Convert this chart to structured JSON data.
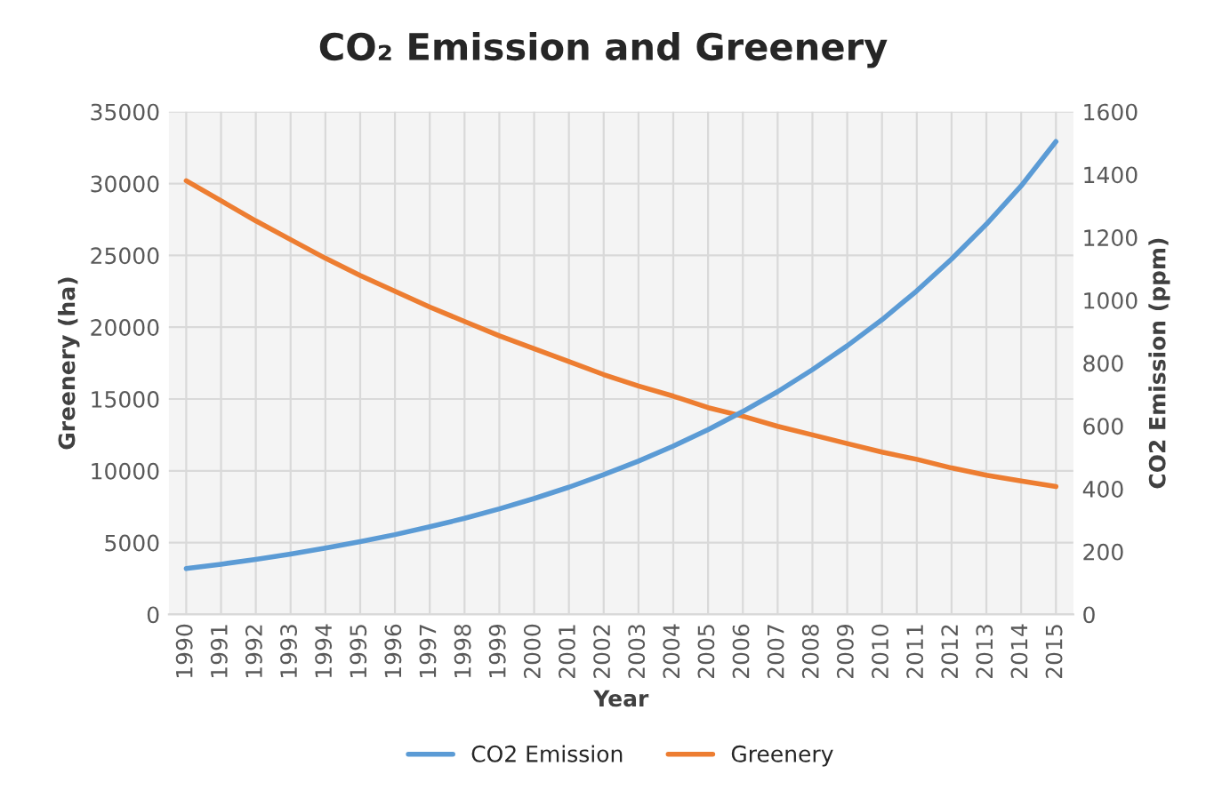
{
  "chart_data": {
    "type": "line",
    "title": "CO₂ Emission and Greenery",
    "xlabel": "Year",
    "ylabel": "Greenery (ha)",
    "y2label": "CO2 Emission (ppm)",
    "categories": [
      "1990",
      "1991",
      "1992",
      "1993",
      "1994",
      "1995",
      "1996",
      "1997",
      "1998",
      "1999",
      "2000",
      "2001",
      "2002",
      "2003",
      "2004",
      "2005",
      "2006",
      "2007",
      "2008",
      "2009",
      "2010",
      "2011",
      "2012",
      "2013",
      "2014",
      "2015"
    ],
    "series": [
      {
        "name": "CO2 Emission",
        "color": "#5b9bd5",
        "axis": "y2",
        "values": [
          146,
          160,
          175,
          192,
          211,
          232,
          254,
          279,
          306,
          336,
          369,
          405,
          445,
          488,
          536,
          588,
          646,
          709,
          779,
          855,
          938,
          1030,
          1131,
          1242,
          1364,
          1505
        ]
      },
      {
        "name": "Greenery",
        "color": "#ed7d31",
        "axis": "y",
        "values": [
          30200,
          28800,
          27400,
          26100,
          24800,
          23600,
          22500,
          21400,
          20400,
          19400,
          18500,
          17600,
          16700,
          15900,
          15200,
          14400,
          13800,
          13100,
          12500,
          11900,
          11300,
          10800,
          10200,
          9700,
          9300,
          8900
        ]
      }
    ],
    "ylim": [
      0,
      35000
    ],
    "yticks": [
      0,
      5000,
      10000,
      15000,
      20000,
      25000,
      30000,
      35000
    ],
    "y2lim": [
      0,
      1600
    ],
    "y2ticks": [
      0,
      200,
      400,
      600,
      800,
      1000,
      1200,
      1400,
      1600
    ],
    "grid": true,
    "legend": "bottom",
    "marker": "none",
    "line_style": "solid"
  }
}
